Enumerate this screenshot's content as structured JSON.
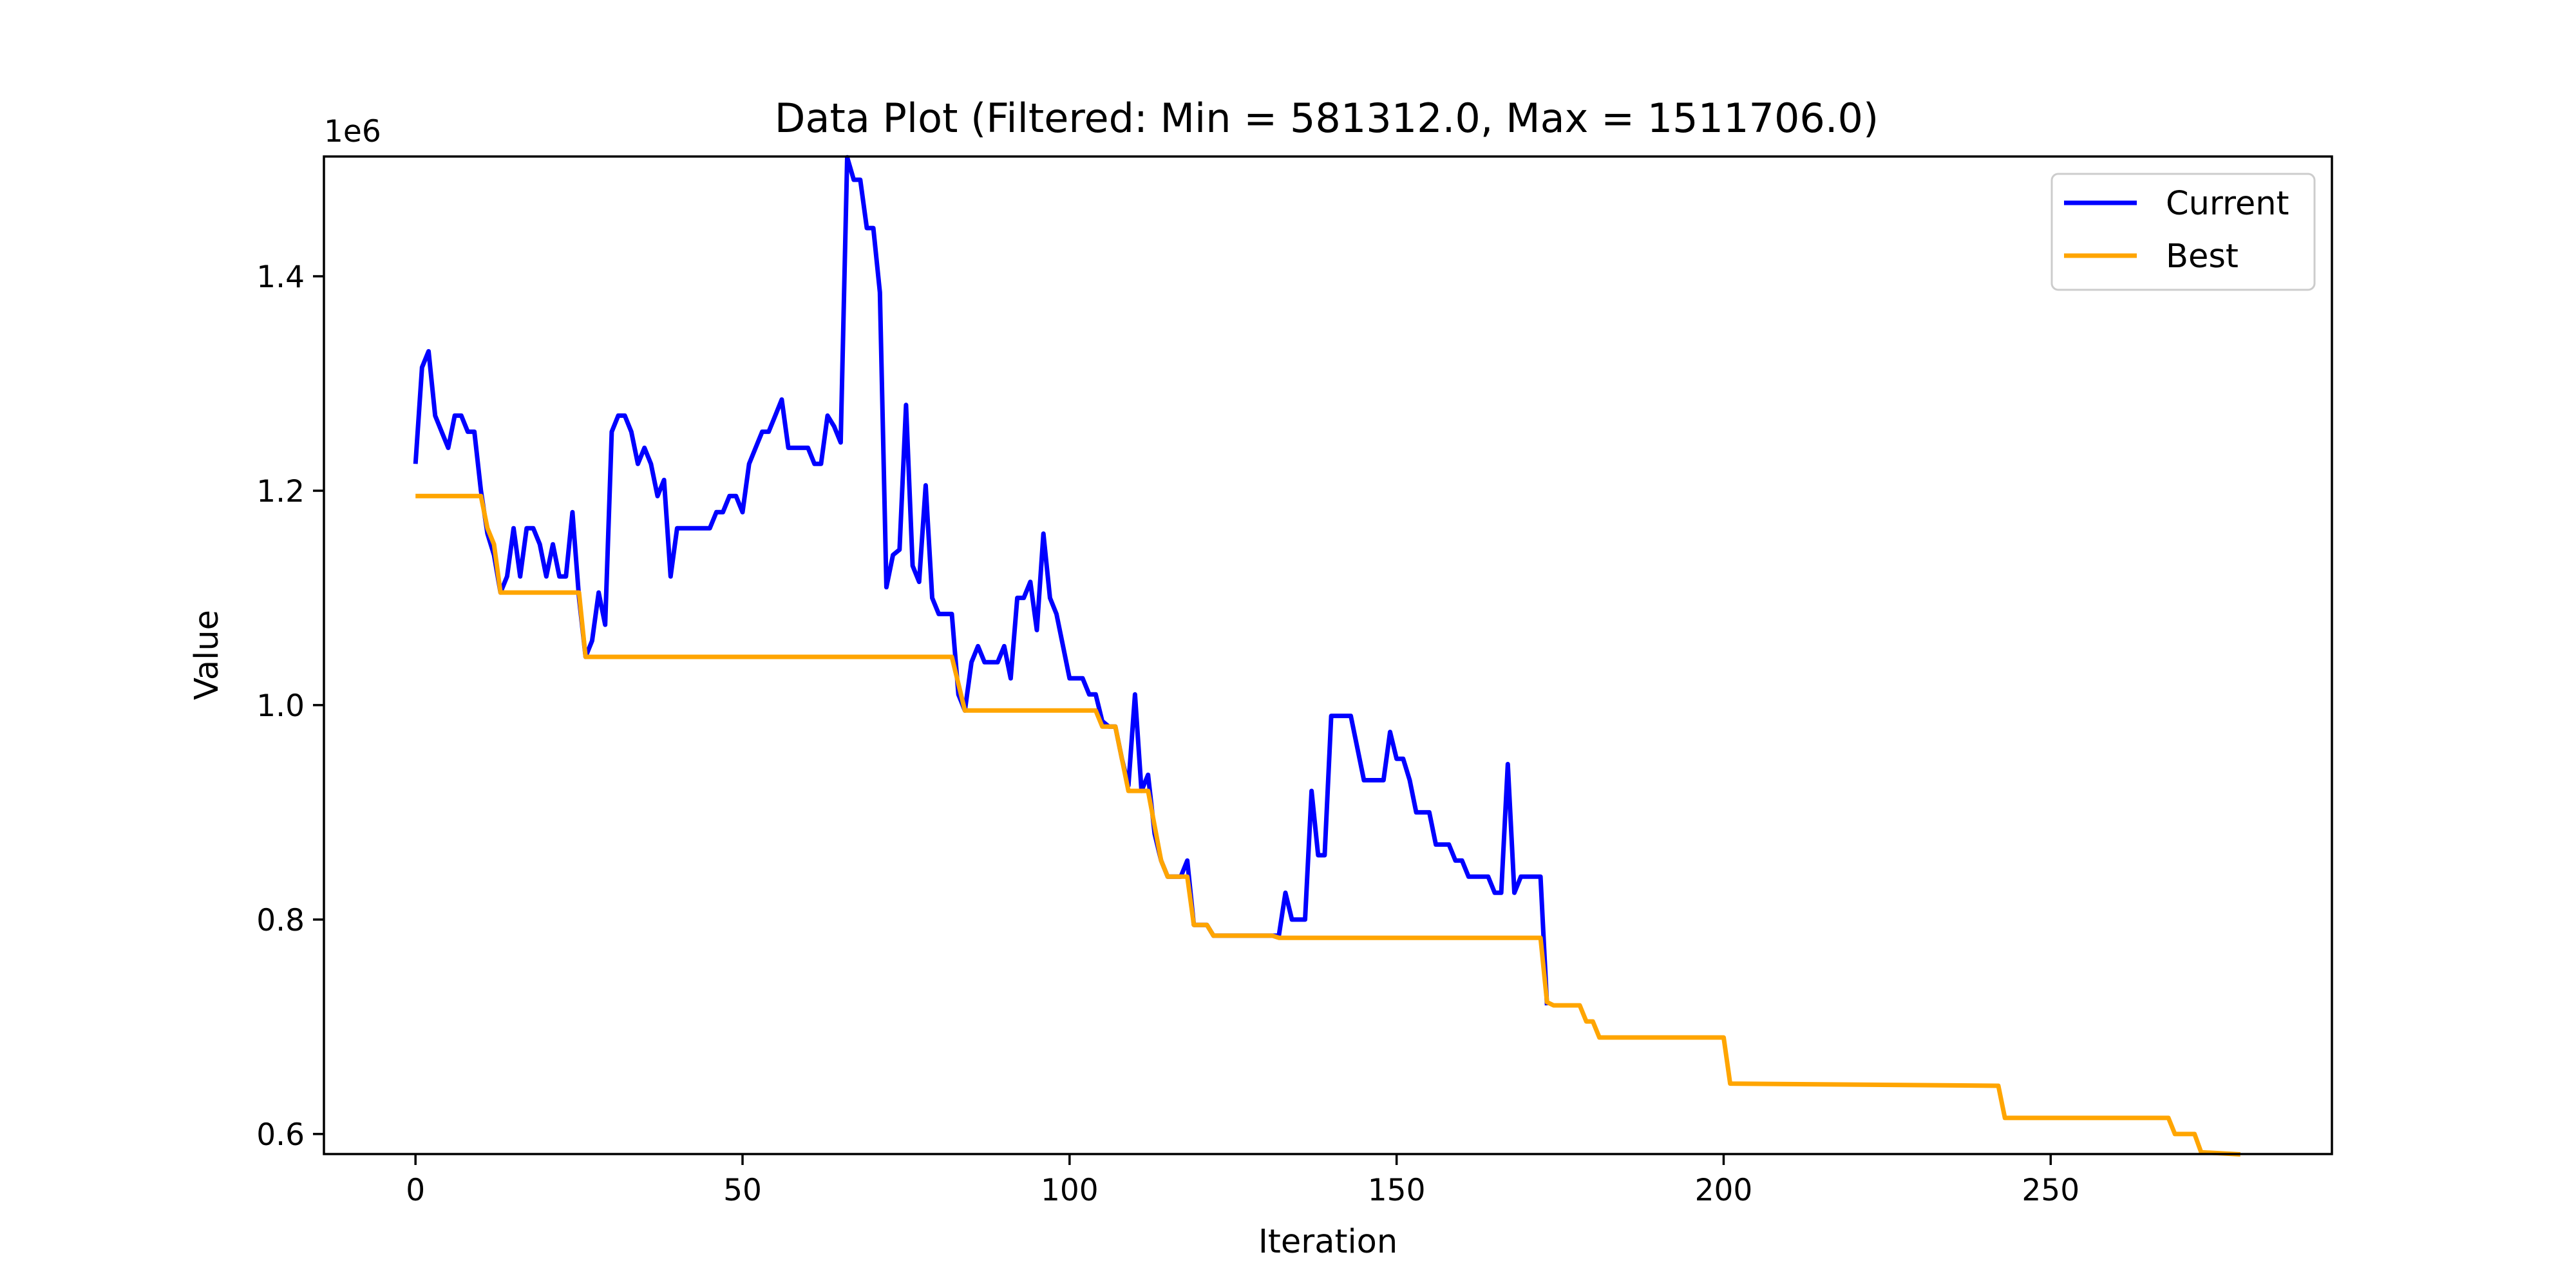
{
  "chart_data": {
    "type": "line",
    "title": "Data Plot (Filtered: Min = 581312.0, Max = 1511706.0)",
    "xlabel": "Iteration",
    "ylabel": "Value",
    "y_offset_label": "1e6",
    "xlim": [
      -14,
      293
    ],
    "ylim": [
      0.581312,
      1.511706
    ],
    "x_ticks": [
      0,
      50,
      100,
      150,
      200,
      250
    ],
    "x_tick_labels": [
      "0",
      "50",
      "100",
      "150",
      "200",
      "250"
    ],
    "y_ticks": [
      0.6,
      0.8,
      1.0,
      1.2,
      1.4
    ],
    "y_tick_labels": [
      "0.6",
      "0.8",
      "1.0",
      "1.2",
      "1.4"
    ],
    "grid": false,
    "legend_position": "top-right",
    "series": [
      {
        "name": "Current",
        "color": "#0000ff",
        "points": [
          [
            0,
            1.225
          ],
          [
            1,
            1.315
          ],
          [
            2,
            1.33
          ],
          [
            3,
            1.27
          ],
          [
            4,
            1.255
          ],
          [
            5,
            1.24
          ],
          [
            6,
            1.27
          ],
          [
            7,
            1.27
          ],
          [
            8,
            1.255
          ],
          [
            9,
            1.255
          ],
          [
            10,
            1.2
          ],
          [
            11,
            1.16
          ],
          [
            12,
            1.14
          ],
          [
            13,
            1.105
          ],
          [
            14,
            1.12
          ],
          [
            15,
            1.165
          ],
          [
            16,
            1.12
          ],
          [
            17,
            1.165
          ],
          [
            18,
            1.165
          ],
          [
            19,
            1.15
          ],
          [
            20,
            1.12
          ],
          [
            21,
            1.15
          ],
          [
            22,
            1.12
          ],
          [
            23,
            1.12
          ],
          [
            24,
            1.18
          ],
          [
            25,
            1.1
          ],
          [
            26,
            1.045
          ],
          [
            27,
            1.06
          ],
          [
            28,
            1.105
          ],
          [
            29,
            1.075
          ],
          [
            30,
            1.255
          ],
          [
            31,
            1.27
          ],
          [
            32,
            1.27
          ],
          [
            33,
            1.255
          ],
          [
            34,
            1.225
          ],
          [
            35,
            1.24
          ],
          [
            36,
            1.225
          ],
          [
            37,
            1.195
          ],
          [
            38,
            1.21
          ],
          [
            39,
            1.12
          ],
          [
            40,
            1.165
          ],
          [
            41,
            1.165
          ],
          [
            42,
            1.165
          ],
          [
            43,
            1.165
          ],
          [
            44,
            1.165
          ],
          [
            45,
            1.165
          ],
          [
            46,
            1.18
          ],
          [
            47,
            1.18
          ],
          [
            48,
            1.195
          ],
          [
            49,
            1.195
          ],
          [
            50,
            1.18
          ],
          [
            51,
            1.225
          ],
          [
            52,
            1.24
          ],
          [
            53,
            1.255
          ],
          [
            54,
            1.255
          ],
          [
            55,
            1.27
          ],
          [
            56,
            1.285
          ],
          [
            57,
            1.24
          ],
          [
            58,
            1.24
          ],
          [
            59,
            1.24
          ],
          [
            60,
            1.24
          ],
          [
            61,
            1.225
          ],
          [
            62,
            1.225
          ],
          [
            63,
            1.27
          ],
          [
            64,
            1.26
          ],
          [
            65,
            1.245
          ],
          [
            66,
            1.511
          ],
          [
            67,
            1.49
          ],
          [
            68,
            1.49
          ],
          [
            69,
            1.445
          ],
          [
            70,
            1.445
          ],
          [
            71,
            1.385
          ],
          [
            72,
            1.11
          ],
          [
            73,
            1.14
          ],
          [
            74,
            1.145
          ],
          [
            75,
            1.28
          ],
          [
            76,
            1.13
          ],
          [
            77,
            1.115
          ],
          [
            78,
            1.205
          ],
          [
            79,
            1.1
          ],
          [
            80,
            1.085
          ],
          [
            81,
            1.085
          ],
          [
            82,
            1.085
          ],
          [
            83,
            1.01
          ],
          [
            84,
            0.995
          ],
          [
            85,
            1.04
          ],
          [
            86,
            1.055
          ],
          [
            87,
            1.04
          ],
          [
            88,
            1.04
          ],
          [
            89,
            1.04
          ],
          [
            90,
            1.055
          ],
          [
            91,
            1.025
          ],
          [
            92,
            1.1
          ],
          [
            93,
            1.1
          ],
          [
            94,
            1.115
          ],
          [
            95,
            1.07
          ],
          [
            96,
            1.16
          ],
          [
            97,
            1.1
          ],
          [
            98,
            1.085
          ],
          [
            99,
            1.055
          ],
          [
            100,
            1.025
          ],
          [
            101,
            1.025
          ],
          [
            102,
            1.025
          ],
          [
            103,
            1.01
          ],
          [
            104,
            1.01
          ],
          [
            105,
            0.985
          ],
          [
            106,
            0.98
          ],
          [
            107,
            0.98
          ],
          [
            108,
            0.95
          ],
          [
            109,
            0.925
          ],
          [
            110,
            1.01
          ],
          [
            111,
            0.92
          ],
          [
            112,
            0.935
          ],
          [
            113,
            0.88
          ],
          [
            114,
            0.855
          ],
          [
            115,
            0.84
          ],
          [
            116,
            0.84
          ],
          [
            117,
            0.84
          ],
          [
            118,
            0.855
          ],
          [
            119,
            0.795
          ],
          [
            120,
            0.795
          ],
          [
            121,
            0.795
          ],
          [
            122,
            0.785
          ],
          [
            123,
            0.785
          ],
          [
            124,
            0.785
          ],
          [
            125,
            0.785
          ],
          [
            126,
            0.785
          ],
          [
            127,
            0.785
          ],
          [
            128,
            0.785
          ],
          [
            129,
            0.785
          ],
          [
            130,
            0.785
          ],
          [
            131,
            0.785
          ],
          [
            132,
            0.785
          ],
          [
            133,
            0.825
          ],
          [
            134,
            0.8
          ],
          [
            135,
            0.8
          ],
          [
            136,
            0.8
          ],
          [
            137,
            0.92
          ],
          [
            138,
            0.86
          ],
          [
            139,
            0.86
          ],
          [
            140,
            0.99
          ],
          [
            141,
            0.99
          ],
          [
            142,
            0.99
          ],
          [
            143,
            0.99
          ],
          [
            144,
            0.96
          ],
          [
            145,
            0.93
          ],
          [
            146,
            0.93
          ],
          [
            147,
            0.93
          ],
          [
            148,
            0.93
          ],
          [
            149,
            0.975
          ],
          [
            150,
            0.95
          ],
          [
            151,
            0.95
          ],
          [
            152,
            0.93
          ],
          [
            153,
            0.9
          ],
          [
            154,
            0.9
          ],
          [
            155,
            0.9
          ],
          [
            156,
            0.87
          ],
          [
            157,
            0.87
          ],
          [
            158,
            0.87
          ],
          [
            159,
            0.855
          ],
          [
            160,
            0.855
          ],
          [
            161,
            0.84
          ],
          [
            162,
            0.84
          ],
          [
            163,
            0.84
          ],
          [
            164,
            0.84
          ],
          [
            165,
            0.825
          ],
          [
            166,
            0.825
          ],
          [
            167,
            0.945
          ],
          [
            168,
            0.825
          ],
          [
            169,
            0.84
          ],
          [
            170,
            0.84
          ],
          [
            171,
            0.84
          ],
          [
            172,
            0.84
          ],
          [
            173,
            0.72
          ]
        ]
      },
      {
        "name": "Best",
        "color": "#ffa500",
        "points": [
          [
            0,
            1.195
          ],
          [
            10,
            1.195
          ],
          [
            11,
            1.165
          ],
          [
            12,
            1.15
          ],
          [
            13,
            1.105
          ],
          [
            25,
            1.105
          ],
          [
            26,
            1.045
          ],
          [
            82,
            1.045
          ],
          [
            84,
            0.995
          ],
          [
            104,
            0.995
          ],
          [
            105,
            0.98
          ],
          [
            107,
            0.98
          ],
          [
            109,
            0.92
          ],
          [
            112,
            0.92
          ],
          [
            114,
            0.855
          ],
          [
            115,
            0.84
          ],
          [
            118,
            0.84
          ],
          [
            119,
            0.795
          ],
          [
            121,
            0.795
          ],
          [
            122,
            0.785
          ],
          [
            131,
            0.785
          ],
          [
            132,
            0.783
          ],
          [
            172,
            0.783
          ],
          [
            173,
            0.723
          ],
          [
            174,
            0.72
          ],
          [
            178,
            0.72
          ],
          [
            179,
            0.705
          ],
          [
            180,
            0.705
          ],
          [
            181,
            0.69
          ],
          [
            200,
            0.69
          ],
          [
            201,
            0.647
          ],
          [
            242,
            0.645
          ],
          [
            243,
            0.615
          ],
          [
            268,
            0.615
          ],
          [
            269,
            0.6
          ],
          [
            272,
            0.6
          ],
          [
            273,
            0.583
          ],
          [
            279,
            0.581
          ]
        ]
      }
    ]
  }
}
